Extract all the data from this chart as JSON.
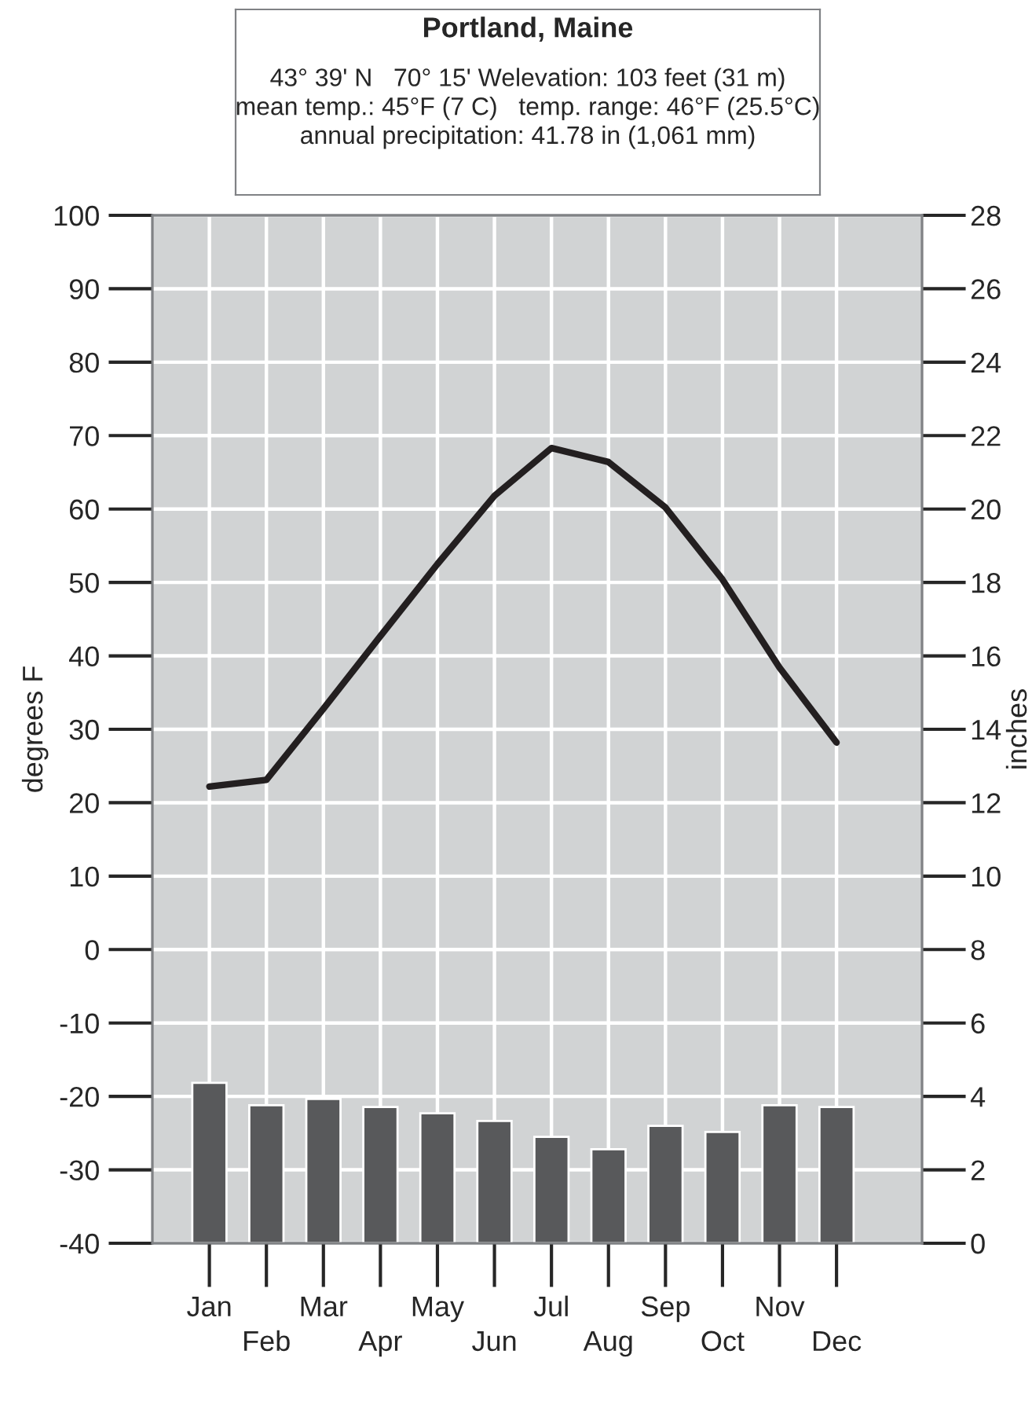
{
  "chart_data": {
    "type": "line",
    "title": "Portland, Maine",
    "subtitle": "43° 39' N   70° 15' Welevation: 103 feet (31 m)\nmean temp.: 45°F (7 C)   temp. range: 46°F (25.5°C)\nannual precipitation: 41.78 in (1,061 mm)",
    "categories": [
      "Jan",
      "Feb",
      "Mar",
      "Apr",
      "May",
      "Jun",
      "Jul",
      "Aug",
      "Sep",
      "Oct",
      "Nov",
      "Dec"
    ],
    "series": [
      {
        "type": "bar",
        "axis": "y2",
        "color": "#58595b",
        "values": [
          4.37,
          3.76,
          3.93,
          3.71,
          3.54,
          3.33,
          2.9,
          2.56,
          3.2,
          3.03,
          3.76,
          3.71
        ]
      },
      {
        "color": "#231f20",
        "values": [
          22.2,
          23.1,
          32.8,
          42.7,
          52.5,
          61.8,
          68.3,
          66.4,
          60.2,
          50.4,
          38.4,
          28.2
        ]
      }
    ],
    "ylabel": "degrees F",
    "y2label": "inches",
    "ylim": [
      -40,
      100
    ],
    "yticks": [
      -40,
      -30,
      -20,
      -10,
      0,
      10,
      20,
      30,
      40,
      50,
      60,
      70,
      80,
      90,
      100
    ],
    "y2lim": [
      0,
      28
    ],
    "y2ticks": [
      0,
      2,
      4,
      6,
      8,
      10,
      12,
      14,
      16,
      18,
      20,
      22,
      24,
      26,
      28
    ],
    "grid": true,
    "legend": false,
    "marker": "none",
    "line_style": "solid"
  }
}
